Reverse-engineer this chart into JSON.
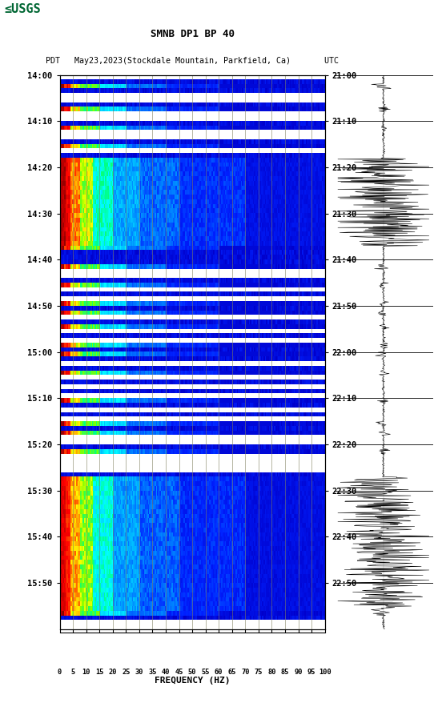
{
  "title_line1": "SMNB DP1 BP 40",
  "title_line2": "PDT   May23,2023(Stockdale Mountain, Parkfield, Ca)       UTC",
  "left_time_labels": [
    "14:00",
    "14:10",
    "14:20",
    "14:30",
    "14:40",
    "14:50",
    "15:00",
    "15:10",
    "15:20",
    "15:30",
    "15:40",
    "15:50"
  ],
  "right_time_labels": [
    "21:00",
    "21:10",
    "21:20",
    "21:30",
    "21:40",
    "21:50",
    "22:00",
    "22:10",
    "22:20",
    "22:30",
    "22:40",
    "22:50"
  ],
  "freq_ticks": [
    0,
    5,
    10,
    15,
    20,
    25,
    30,
    35,
    40,
    45,
    50,
    55,
    60,
    65,
    70,
    75,
    80,
    85,
    90,
    95,
    100
  ],
  "xlabel": "FREQUENCY (HZ)",
  "fig_width": 5.52,
  "fig_height": 8.93,
  "background_color": "#ffffff",
  "usgs_green": "#006633",
  "vertical_line_color": "#808060",
  "vertical_line_freq": [
    5,
    10,
    15,
    20,
    25,
    30,
    35,
    40,
    45,
    50,
    55,
    60,
    65,
    70,
    75,
    80,
    85,
    90,
    95,
    100
  ]
}
